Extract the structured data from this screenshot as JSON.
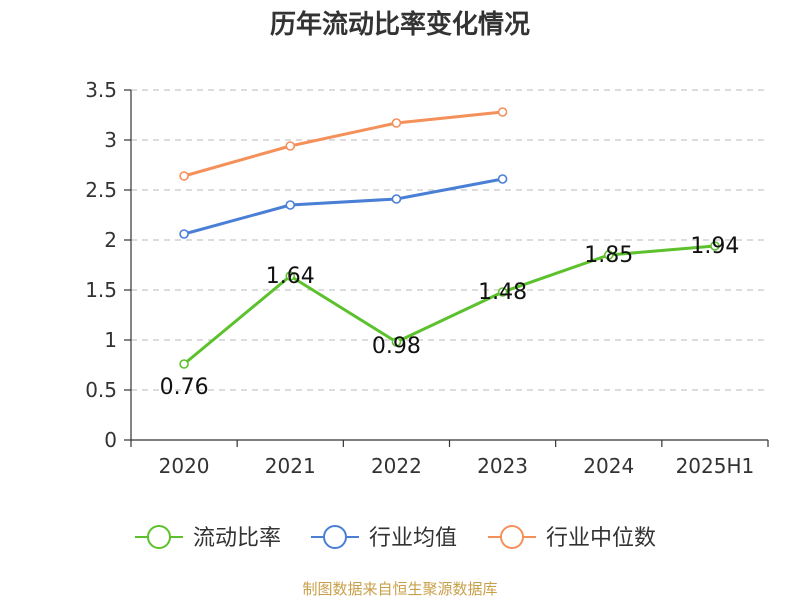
{
  "chart_data": {
    "type": "line",
    "title": "历年流动比率变化情况",
    "categories": [
      "2020",
      "2021",
      "2022",
      "2023",
      "2024",
      "2025H1"
    ],
    "ylim": [
      0,
      3.5
    ],
    "yticks": [
      "0",
      "0.5",
      "1",
      "1.5",
      "2",
      "2.5",
      "3",
      "3.5"
    ],
    "grid": true,
    "legend_position": "bottom",
    "series": [
      {
        "name": "流动比率",
        "color": "#5cc12c",
        "values": [
          0.76,
          1.64,
          0.98,
          1.48,
          1.85,
          1.94
        ],
        "labels": [
          "0.76",
          "1.64",
          "0.98",
          "1.48",
          "1.85",
          "1.94"
        ]
      },
      {
        "name": "行业均值",
        "color": "#4a7fd6",
        "values": [
          2.06,
          2.35,
          2.41,
          2.61,
          null,
          null
        ]
      },
      {
        "name": "行业中位数",
        "color": "#f4905a",
        "values": [
          2.64,
          2.94,
          3.17,
          3.28,
          null,
          null
        ]
      }
    ]
  },
  "source": "制图数据来自恒生聚源数据库"
}
